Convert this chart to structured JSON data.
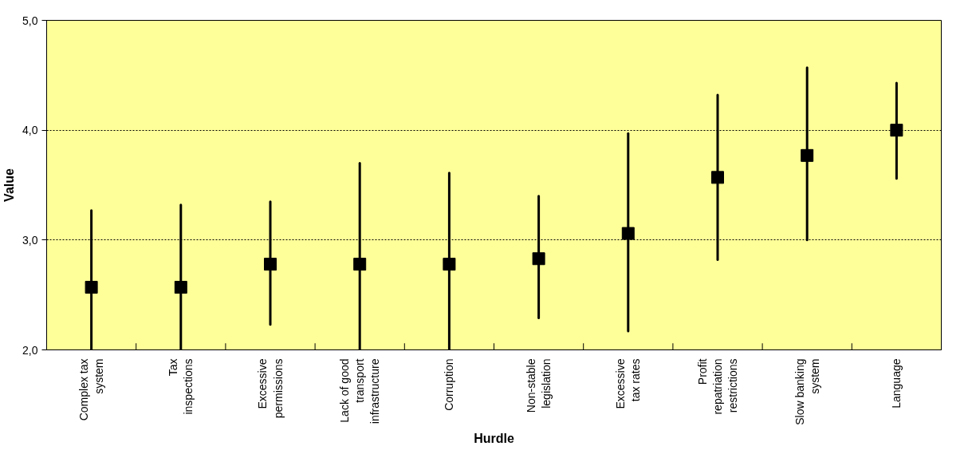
{
  "chart_data": {
    "type": "scatter",
    "xlabel": "Hurdle",
    "ylabel": "Value",
    "categories": [
      "Complex tax system",
      "Tax inspections",
      "Excessive permissions",
      "Lack of good transport infrastructure",
      "Corruption",
      "Non-stable legislation",
      "Excessive tax rates",
      "Profit repatriation restrictions",
      "Slow banking system",
      "Language"
    ],
    "series": [
      {
        "color": "#000000",
        "values": [
          2.57,
          2.57,
          2.78,
          2.78,
          2.78,
          2.83,
          3.06,
          3.57,
          3.77,
          4.0
        ],
        "errors": [
          [
            2.0,
            3.27
          ],
          [
            2.0,
            3.32
          ],
          [
            2.23,
            3.35
          ],
          [
            2.0,
            3.7
          ],
          [
            2.0,
            3.61
          ],
          [
            2.29,
            3.4
          ],
          [
            2.17,
            3.97
          ],
          [
            2.82,
            4.32
          ],
          [
            3.0,
            4.57
          ],
          [
            3.56,
            4.43
          ]
        ]
      }
    ],
    "ylim": [
      2,
      5
    ],
    "yticks": [
      {
        "value": 2,
        "label": "2,0"
      },
      {
        "value": 3,
        "label": "3,0"
      },
      {
        "value": 4,
        "label": "4,0"
      },
      {
        "value": 5,
        "label": "5,0"
      }
    ],
    "grid": "y",
    "marker": "square"
  }
}
